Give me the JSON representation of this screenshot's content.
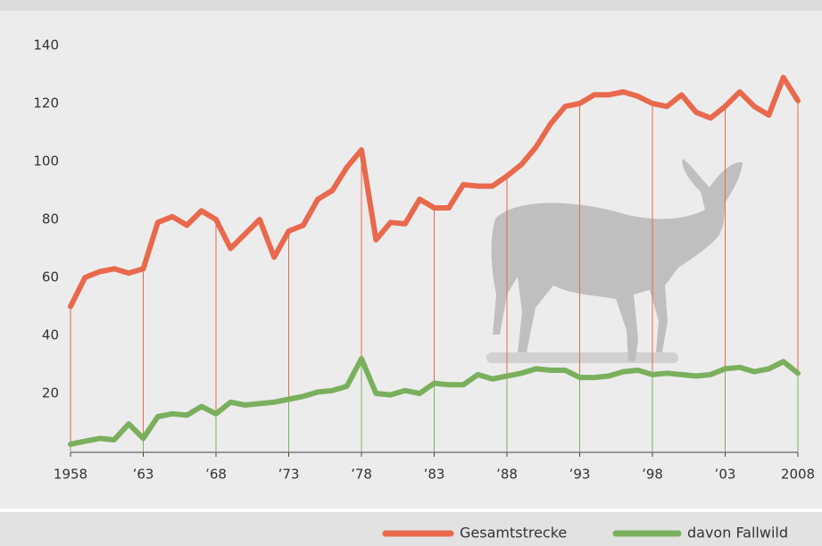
{
  "chart_data": {
    "type": "line",
    "x": [
      1958,
      1959,
      1960,
      1961,
      1962,
      1963,
      1964,
      1965,
      1966,
      1967,
      1968,
      1969,
      1970,
      1971,
      1972,
      1973,
      1974,
      1975,
      1976,
      1977,
      1978,
      1979,
      1980,
      1981,
      1982,
      1983,
      1984,
      1985,
      1986,
      1987,
      1988,
      1989,
      1990,
      1991,
      1992,
      1993,
      1994,
      1995,
      1996,
      1997,
      1998,
      1999,
      2000,
      2001,
      2002,
      2003,
      2004,
      2005,
      2006,
      2007,
      2008
    ],
    "series": [
      {
        "name": "Gesamtstrecke",
        "color": "#e8694c",
        "values": [
          50,
          60,
          62,
          63,
          61.5,
          63,
          79,
          81,
          78,
          83,
          80,
          70,
          75,
          80,
          67,
          76,
          78,
          87,
          90,
          98,
          104,
          73,
          79,
          78.5,
          87,
          84,
          84,
          92,
          91.5,
          91.5,
          95,
          99,
          105,
          113,
          119,
          120,
          123,
          123,
          124,
          122.5,
          120,
          119,
          123,
          117,
          115,
          119,
          124,
          119,
          116,
          129,
          121
        ]
      },
      {
        "name": "davon Fallwild",
        "color": "#7ab05d",
        "values": [
          2.5,
          3.5,
          4.5,
          4,
          9.5,
          4.5,
          12,
          13,
          12.5,
          15.5,
          13,
          17,
          16,
          16.5,
          17,
          18,
          19,
          20.5,
          21,
          22.5,
          32,
          20,
          19.5,
          21,
          20,
          23.5,
          23,
          23,
          26.5,
          25,
          26,
          27,
          28.5,
          28,
          28,
          25.5,
          25.5,
          26,
          27.5,
          28,
          26.5,
          27,
          26.5,
          26,
          26.5,
          28.5,
          29,
          27.5,
          28.5,
          31,
          27
        ]
      }
    ],
    "xlim": [
      1958,
      2008
    ],
    "xticks": [
      1958,
      {
        "value": 1963,
        "label": "’63"
      },
      {
        "value": 1968,
        "label": "’68"
      },
      {
        "value": 1973,
        "label": "’73"
      },
      {
        "value": 1978,
        "label": "’78"
      },
      {
        "value": 1983,
        "label": "’83"
      },
      {
        "value": 1988,
        "label": "’88"
      },
      {
        "value": 1993,
        "label": "’93"
      },
      {
        "value": 1998,
        "label": "’98"
      },
      {
        "value": 2003,
        "label": "’03"
      },
      2008
    ],
    "ylim": [
      0,
      140
    ],
    "yticks": [
      20,
      40,
      60,
      80,
      100,
      120,
      140
    ],
    "grid": false
  }
}
